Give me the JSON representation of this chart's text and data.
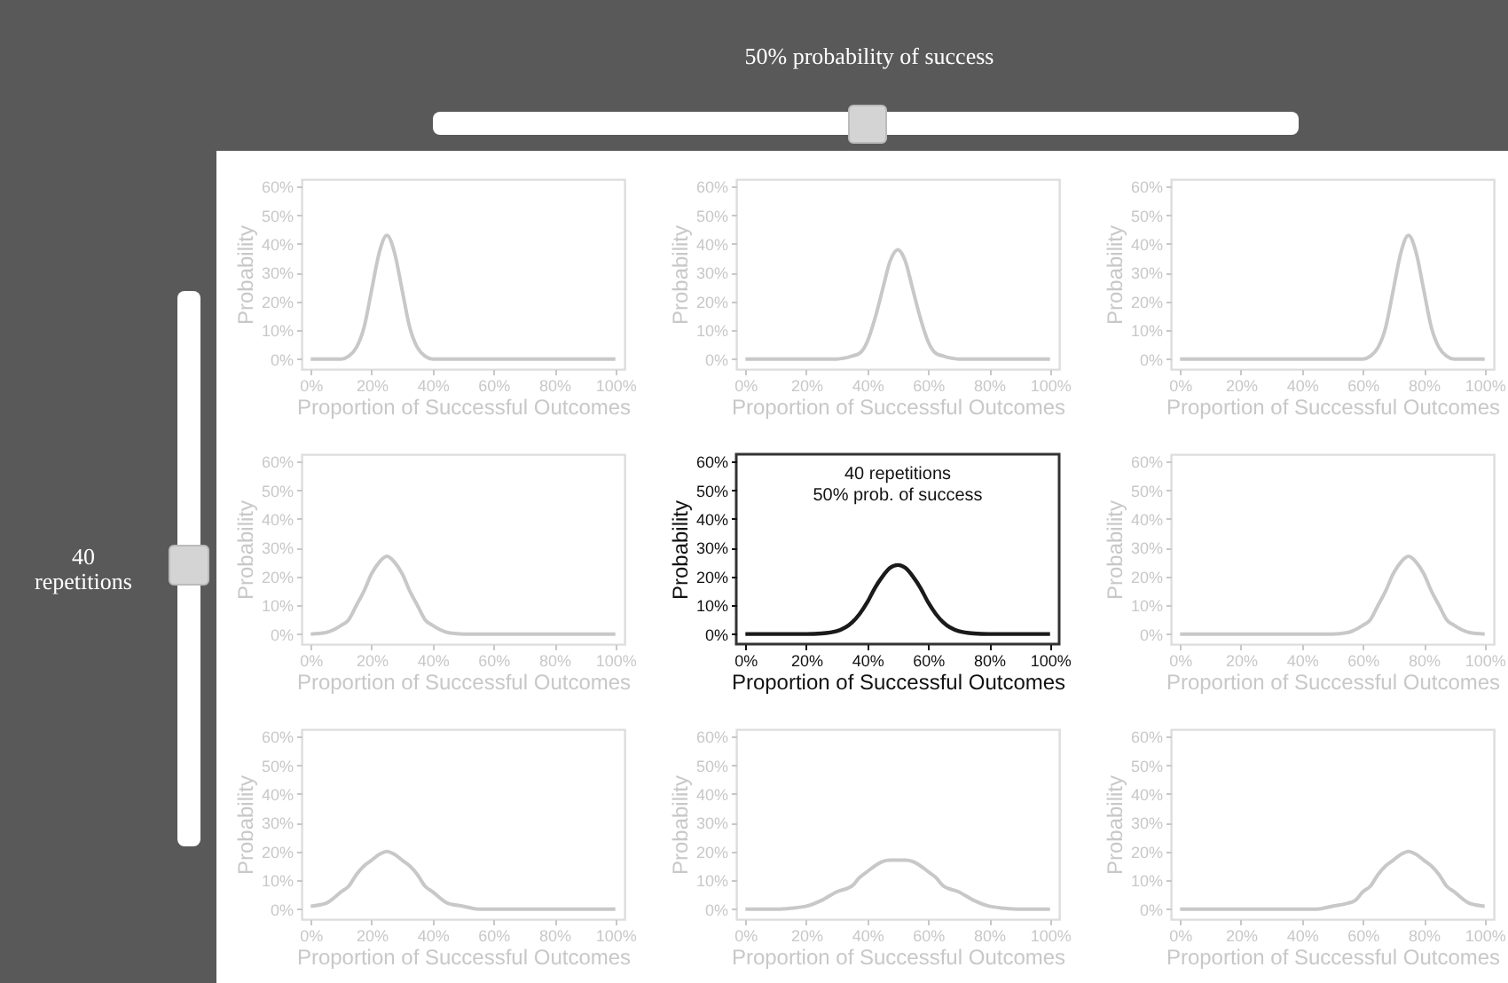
{
  "chart_data": [
    {
      "type": "other",
      "annotations": [
        "50% probability of success",
        "40 repetitions"
      ]
    },
    {
      "type": "line",
      "xlabel": "Proportion of Successful Outcomes",
      "ylabel": "Probability",
      "xlim": [
        -3,
        103
      ],
      "ylim": [
        -3.5,
        62.5
      ],
      "xticks": [
        {
          "value": 0,
          "label": "0%"
        },
        {
          "value": 20,
          "label": "20%"
        },
        {
          "value": 40,
          "label": "40%"
        },
        {
          "value": 60,
          "label": "60%"
        },
        {
          "value": 80,
          "label": "80%"
        },
        {
          "value": 100,
          "label": "100%"
        }
      ],
      "yticks": [
        {
          "value": 0,
          "label": "0%"
        },
        {
          "value": 10,
          "label": "10%"
        },
        {
          "value": 20,
          "label": "20%"
        },
        {
          "value": 30,
          "label": "30%"
        },
        {
          "value": 40,
          "label": "40%"
        },
        {
          "value": 50,
          "label": "50%"
        },
        {
          "value": 60,
          "label": "60%"
        }
      ],
      "x": [
        0,
        5,
        10,
        12.5,
        15,
        17.5,
        20,
        22.5,
        25,
        27.5,
        30,
        32.5,
        35,
        37.5,
        40,
        45,
        50,
        60,
        70,
        80,
        90,
        100
      ],
      "series": [
        {
          "color": "#c8c8c8",
          "values": [
            0,
            0,
            0,
            1,
            4,
            11,
            24,
            37,
            43,
            37,
            24,
            11,
            4,
            1,
            0,
            0,
            0,
            0,
            0,
            0,
            0,
            0
          ]
        }
      ]
    },
    {
      "type": "line",
      "xlabel": "Proportion of Successful Outcomes",
      "ylabel": "Probability",
      "xlim": [
        -3,
        103
      ],
      "ylim": [
        -3.5,
        62.5
      ],
      "xticks": [
        {
          "value": 0,
          "label": "0%"
        },
        {
          "value": 20,
          "label": "20%"
        },
        {
          "value": 40,
          "label": "40%"
        },
        {
          "value": 60,
          "label": "60%"
        },
        {
          "value": 80,
          "label": "80%"
        },
        {
          "value": 100,
          "label": "100%"
        }
      ],
      "yticks": [
        {
          "value": 0,
          "label": "0%"
        },
        {
          "value": 10,
          "label": "10%"
        },
        {
          "value": 20,
          "label": "20%"
        },
        {
          "value": 30,
          "label": "30%"
        },
        {
          "value": 40,
          "label": "40%"
        },
        {
          "value": 50,
          "label": "50%"
        },
        {
          "value": 60,
          "label": "60%"
        }
      ],
      "x": [
        0,
        10,
        20,
        30,
        35,
        37.5,
        40,
        42.5,
        45,
        47.5,
        50,
        52.5,
        55,
        57.5,
        60,
        62.5,
        65,
        70,
        80,
        90,
        100
      ],
      "series": [
        {
          "color": "#c8c8c8",
          "values": [
            0,
            0,
            0,
            0,
            1,
            2,
            6,
            14,
            24,
            34,
            38,
            34,
            24,
            14,
            6,
            2,
            1,
            0,
            0,
            0,
            0
          ]
        }
      ]
    },
    {
      "type": "line",
      "xlabel": "Proportion of Successful Outcomes",
      "ylabel": "Probability",
      "xlim": [
        -3,
        103
      ],
      "ylim": [
        -3.5,
        62.5
      ],
      "xticks": [
        {
          "value": 0,
          "label": "0%"
        },
        {
          "value": 20,
          "label": "20%"
        },
        {
          "value": 40,
          "label": "40%"
        },
        {
          "value": 60,
          "label": "60%"
        },
        {
          "value": 80,
          "label": "80%"
        },
        {
          "value": 100,
          "label": "100%"
        }
      ],
      "yticks": [
        {
          "value": 0,
          "label": "0%"
        },
        {
          "value": 10,
          "label": "10%"
        },
        {
          "value": 20,
          "label": "20%"
        },
        {
          "value": 30,
          "label": "30%"
        },
        {
          "value": 40,
          "label": "40%"
        },
        {
          "value": 50,
          "label": "50%"
        },
        {
          "value": 60,
          "label": "60%"
        }
      ],
      "x": [
        0,
        10,
        20,
        30,
        40,
        50,
        55,
        60,
        62.5,
        65,
        67.5,
        70,
        72.5,
        75,
        77.5,
        80,
        82.5,
        85,
        87.5,
        90,
        95,
        100
      ],
      "series": [
        {
          "color": "#c8c8c8",
          "values": [
            0,
            0,
            0,
            0,
            0,
            0,
            0,
            0,
            1,
            4,
            11,
            24,
            37,
            43,
            37,
            24,
            11,
            4,
            1,
            0,
            0,
            0
          ]
        }
      ]
    },
    {
      "type": "line",
      "xlabel": "Proportion of Successful Outcomes",
      "ylabel": "Probability",
      "xlim": [
        -3,
        103
      ],
      "ylim": [
        -3.5,
        62.5
      ],
      "xticks": [
        {
          "value": 0,
          "label": "0%"
        },
        {
          "value": 20,
          "label": "20%"
        },
        {
          "value": 40,
          "label": "40%"
        },
        {
          "value": 60,
          "label": "60%"
        },
        {
          "value": 80,
          "label": "80%"
        },
        {
          "value": 100,
          "label": "100%"
        }
      ],
      "yticks": [
        {
          "value": 0,
          "label": "0%"
        },
        {
          "value": 10,
          "label": "10%"
        },
        {
          "value": 20,
          "label": "20%"
        },
        {
          "value": 30,
          "label": "30%"
        },
        {
          "value": 40,
          "label": "40%"
        },
        {
          "value": 50,
          "label": "50%"
        },
        {
          "value": 60,
          "label": "60%"
        }
      ],
      "x": [
        0,
        5,
        10,
        12.5,
        15,
        17.5,
        20,
        22.5,
        25,
        27.5,
        30,
        32.5,
        35,
        37.5,
        40,
        45,
        50,
        60,
        70,
        80,
        90,
        100
      ],
      "series": [
        {
          "color": "#c8c8c8",
          "values": [
            0,
            0.5,
            3,
            5,
            10,
            15,
            21,
            25,
            27,
            25,
            21,
            15,
            10,
            5,
            3,
            0.5,
            0,
            0,
            0,
            0,
            0,
            0
          ]
        }
      ]
    },
    {
      "type": "line",
      "xlabel": "Proportion of Successful Outcomes",
      "ylabel": "Probability",
      "xlim": [
        -3,
        103
      ],
      "ylim": [
        -3.5,
        62.5
      ],
      "xticks": [
        {
          "value": 0,
          "label": "0%"
        },
        {
          "value": 20,
          "label": "20%"
        },
        {
          "value": 40,
          "label": "40%"
        },
        {
          "value": 60,
          "label": "60%"
        },
        {
          "value": 80,
          "label": "80%"
        },
        {
          "value": 100,
          "label": "100%"
        }
      ],
      "yticks": [
        {
          "value": 0,
          "label": "0%"
        },
        {
          "value": 10,
          "label": "10%"
        },
        {
          "value": 20,
          "label": "20%"
        },
        {
          "value": 30,
          "label": "30%"
        },
        {
          "value": 40,
          "label": "40%"
        },
        {
          "value": 50,
          "label": "50%"
        },
        {
          "value": 60,
          "label": "60%"
        }
      ],
      "annotations": [
        "40 repetitions",
        "50% prob. of success"
      ],
      "x": [
        0,
        10,
        20,
        25,
        30,
        35,
        37.5,
        40,
        42.5,
        45,
        47.5,
        50,
        52.5,
        55,
        57.5,
        60,
        62.5,
        65,
        70,
        75,
        80,
        90,
        100
      ],
      "series": [
        {
          "color": "#1a1a1a",
          "values": [
            0,
            0,
            0,
            0.2,
            1,
            4,
            7,
            11,
            16,
            20,
            23,
            24,
            23,
            20,
            16,
            11,
            7,
            4,
            1,
            0.2,
            0,
            0,
            0
          ]
        }
      ]
    },
    {
      "type": "line",
      "xlabel": "Proportion of Successful Outcomes",
      "ylabel": "Probability",
      "xlim": [
        -3,
        103
      ],
      "ylim": [
        -3.5,
        62.5
      ],
      "xticks": [
        {
          "value": 0,
          "label": "0%"
        },
        {
          "value": 20,
          "label": "20%"
        },
        {
          "value": 40,
          "label": "40%"
        },
        {
          "value": 60,
          "label": "60%"
        },
        {
          "value": 80,
          "label": "80%"
        },
        {
          "value": 100,
          "label": "100%"
        }
      ],
      "yticks": [
        {
          "value": 0,
          "label": "0%"
        },
        {
          "value": 10,
          "label": "10%"
        },
        {
          "value": 20,
          "label": "20%"
        },
        {
          "value": 30,
          "label": "30%"
        },
        {
          "value": 40,
          "label": "40%"
        },
        {
          "value": 50,
          "label": "50%"
        },
        {
          "value": 60,
          "label": "60%"
        }
      ],
      "x": [
        0,
        10,
        20,
        30,
        40,
        50,
        55,
        60,
        62.5,
        65,
        67.5,
        70,
        72.5,
        75,
        77.5,
        80,
        82.5,
        85,
        87.5,
        90,
        95,
        100
      ],
      "series": [
        {
          "color": "#c8c8c8",
          "values": [
            0,
            0,
            0,
            0,
            0,
            0,
            0.5,
            3,
            5,
            10,
            15,
            21,
            25,
            27,
            25,
            21,
            15,
            10,
            5,
            3,
            0.5,
            0
          ]
        }
      ]
    },
    {
      "type": "line",
      "xlabel": "Proportion of Successful Outcomes",
      "ylabel": "Probability",
      "xlim": [
        -3,
        103
      ],
      "ylim": [
        -3.5,
        62.5
      ],
      "xticks": [
        {
          "value": 0,
          "label": "0%"
        },
        {
          "value": 20,
          "label": "20%"
        },
        {
          "value": 40,
          "label": "40%"
        },
        {
          "value": 60,
          "label": "60%"
        },
        {
          "value": 80,
          "label": "80%"
        },
        {
          "value": 100,
          "label": "100%"
        }
      ],
      "yticks": [
        {
          "value": 0,
          "label": "0%"
        },
        {
          "value": 10,
          "label": "10%"
        },
        {
          "value": 20,
          "label": "20%"
        },
        {
          "value": 30,
          "label": "30%"
        },
        {
          "value": 40,
          "label": "40%"
        },
        {
          "value": 50,
          "label": "50%"
        },
        {
          "value": 60,
          "label": "60%"
        }
      ],
      "x": [
        0,
        5,
        10,
        12.5,
        15,
        17.5,
        20,
        22.5,
        25,
        27.5,
        30,
        32.5,
        35,
        37.5,
        40,
        45,
        50,
        55,
        60,
        70,
        80,
        90,
        100
      ],
      "series": [
        {
          "color": "#c8c8c8",
          "values": [
            1,
            2,
            6,
            8,
            12,
            15,
            17,
            19,
            20,
            19,
            17,
            15,
            12,
            8,
            6,
            2,
            1,
            0,
            0,
            0,
            0,
            0,
            0
          ]
        }
      ]
    },
    {
      "type": "line",
      "xlabel": "Proportion of Successful Outcomes",
      "ylabel": "Probability",
      "xlim": [
        -3,
        103
      ],
      "ylim": [
        -3.5,
        62.5
      ],
      "xticks": [
        {
          "value": 0,
          "label": "0%"
        },
        {
          "value": 20,
          "label": "20%"
        },
        {
          "value": 40,
          "label": "40%"
        },
        {
          "value": 60,
          "label": "60%"
        },
        {
          "value": 80,
          "label": "80%"
        },
        {
          "value": 100,
          "label": "100%"
        }
      ],
      "yticks": [
        {
          "value": 0,
          "label": "0%"
        },
        {
          "value": 10,
          "label": "10%"
        },
        {
          "value": 20,
          "label": "20%"
        },
        {
          "value": 30,
          "label": "30%"
        },
        {
          "value": 40,
          "label": "40%"
        },
        {
          "value": 50,
          "label": "50%"
        },
        {
          "value": 60,
          "label": "60%"
        }
      ],
      "x": [
        0,
        10,
        15,
        20,
        25,
        30,
        35,
        37.5,
        40,
        42.5,
        45,
        47.5,
        50,
        52.5,
        55,
        57.5,
        60,
        62.5,
        65,
        70,
        75,
        80,
        85,
        90,
        100
      ],
      "series": [
        {
          "color": "#c8c8c8",
          "values": [
            0,
            0,
            0.3,
            1,
            3,
            6,
            8,
            11,
            13,
            15,
            16.5,
            17,
            17,
            17,
            16.5,
            15,
            13,
            11,
            8,
            6,
            3,
            1,
            0.3,
            0,
            0
          ]
        }
      ]
    },
    {
      "type": "line",
      "xlabel": "Proportion of Successful Outcomes",
      "ylabel": "Probability",
      "xlim": [
        -3,
        103
      ],
      "ylim": [
        -3.5,
        62.5
      ],
      "xticks": [
        {
          "value": 0,
          "label": "0%"
        },
        {
          "value": 20,
          "label": "20%"
        },
        {
          "value": 40,
          "label": "40%"
        },
        {
          "value": 60,
          "label": "60%"
        },
        {
          "value": 80,
          "label": "80%"
        },
        {
          "value": 100,
          "label": "100%"
        }
      ],
      "yticks": [
        {
          "value": 0,
          "label": "0%"
        },
        {
          "value": 10,
          "label": "10%"
        },
        {
          "value": 20,
          "label": "20%"
        },
        {
          "value": 30,
          "label": "30%"
        },
        {
          "value": 40,
          "label": "40%"
        },
        {
          "value": 50,
          "label": "50%"
        },
        {
          "value": 60,
          "label": "60%"
        }
      ],
      "x": [
        0,
        10,
        20,
        30,
        40,
        45,
        50,
        55,
        57.5,
        60,
        62.5,
        65,
        67.5,
        70,
        72.5,
        75,
        77.5,
        80,
        82.5,
        85,
        87.5,
        90,
        95,
        100
      ],
      "series": [
        {
          "color": "#c8c8c8",
          "values": [
            0,
            0,
            0,
            0,
            0,
            0,
            1,
            2,
            3,
            6,
            8,
            12,
            15,
            17,
            19,
            20,
            19,
            17,
            15,
            12,
            8,
            6,
            2,
            1
          ]
        }
      ]
    }
  ]
}
